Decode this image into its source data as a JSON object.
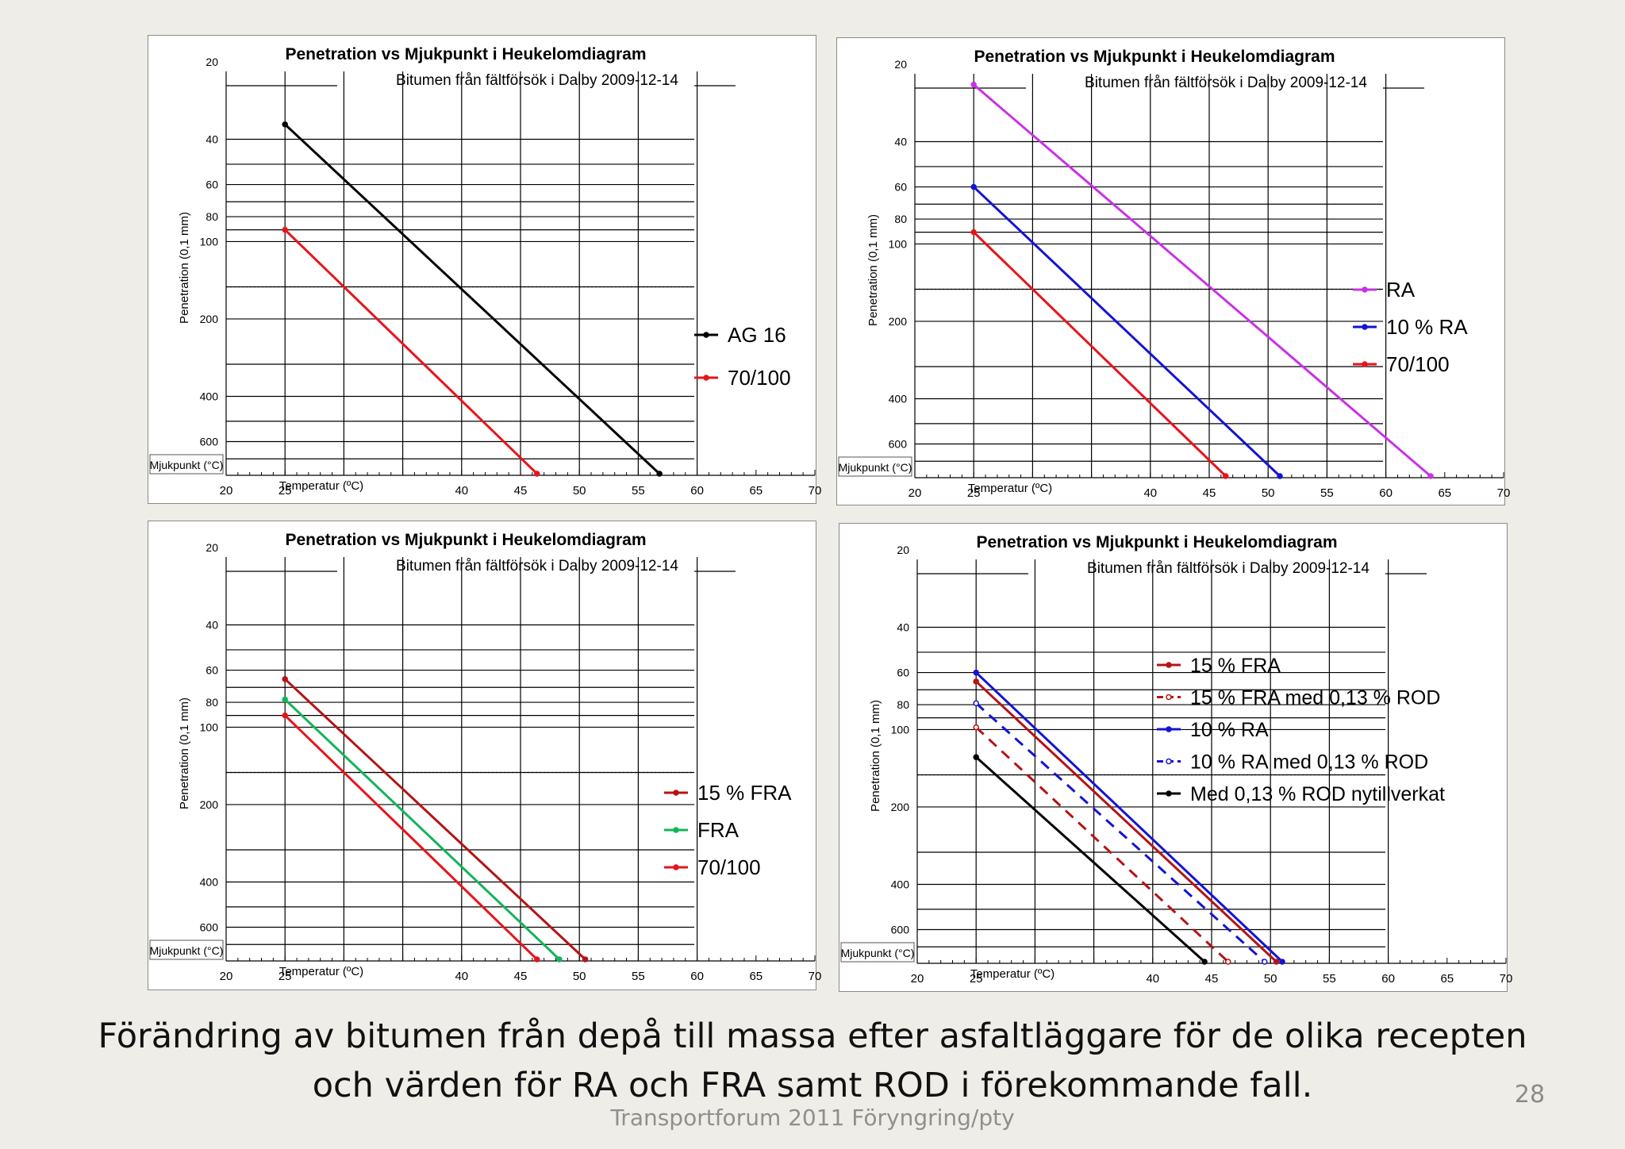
{
  "slide": {
    "caption_line1": "Förändring av bitumen från depå till massa efter asfaltläggare för de olika recepten",
    "caption_line2": "och värden för RA och FRA samt ROD i förekommande fall.",
    "footer": "Transportforum 2011 Föryngring/pty",
    "page_number": "28"
  },
  "chart_data": [
    {
      "type": "line",
      "title": "Penetration vs Mjukpunkt  i Heukelomdiagram",
      "subtitle": "Bitumen från fältförsök i Dalby 2009-12-14",
      "xlabel": "Temperatur (ºC)",
      "ylabel": "Penetration  (0,1 mm)",
      "x_axis_label": "Mjukpunkt (°C)",
      "xlim": [
        20,
        70
      ],
      "xticks": [
        "20",
        "25",
        "",
        "40",
        "45",
        "50",
        "55",
        "60",
        "65",
        "70"
      ],
      "y_scale": "log",
      "ylim": [
        20,
        800
      ],
      "yticks": [
        "20",
        "40",
        "60",
        "80",
        "100",
        "200",
        "400",
        "600"
      ],
      "legend_position": "right",
      "series": [
        {
          "name": "AG 16",
          "color": "#000000",
          "dashed": false,
          "x": [
            25,
            56.8
          ],
          "y": [
            35,
            800
          ]
        },
        {
          "name": "70/100",
          "color": "#e8141b",
          "dashed": false,
          "x": [
            25,
            46.4
          ],
          "y": [
            90,
            800
          ]
        }
      ]
    },
    {
      "type": "line",
      "title": "Penetration vs Mjukpunkt  i Heukelomdiagram",
      "subtitle": "Bitumen från fältförsök i Dalby 2009-12-14",
      "xlabel": "Temperatur (ºC)",
      "ylabel": "Penetration  (0,1 mm)",
      "x_axis_label": "Mjukpunkt (°C)",
      "xlim": [
        20,
        70
      ],
      "xticks": [
        "20",
        "25",
        "",
        "40",
        "45",
        "50",
        "55",
        "60",
        "65",
        "70"
      ],
      "y_scale": "log",
      "ylim": [
        20,
        800
      ],
      "yticks": [
        "20",
        "40",
        "60",
        "80",
        "100",
        "200",
        "400",
        "600"
      ],
      "legend_position": "right",
      "series": [
        {
          "name": "RA",
          "color": "#c832e6",
          "dashed": false,
          "x": [
            25,
            63.8
          ],
          "y": [
            24,
            800
          ]
        },
        {
          "name": "10 % RA",
          "color": "#1414d2",
          "dashed": false,
          "x": [
            25,
            51
          ],
          "y": [
            60,
            800
          ]
        },
        {
          "name": "70/100",
          "color": "#e8141b",
          "dashed": false,
          "x": [
            25,
            46.4
          ],
          "y": [
            90,
            800
          ]
        }
      ]
    },
    {
      "type": "line",
      "title": "Penetration vs Mjukpunkt  i Heukelomdiagram",
      "subtitle": "Bitumen från fältförsök i Dalby 2009-12-14",
      "xlabel": "Temperatur (ºC)",
      "ylabel": "Penetration  (0,1 mm)",
      "x_axis_label": "Mjukpunkt (°C)",
      "xlim": [
        20,
        70
      ],
      "xticks": [
        "20",
        "25",
        "",
        "40",
        "45",
        "50",
        "55",
        "60",
        "65",
        "70"
      ],
      "y_scale": "log",
      "ylim": [
        20,
        800
      ],
      "yticks": [
        "20",
        "40",
        "60",
        "80",
        "100",
        "200",
        "400",
        "600"
      ],
      "legend_position": "right",
      "series": [
        {
          "name": "15 % FRA",
          "color": "#b41414",
          "dashed": false,
          "x": [
            25,
            50.5
          ],
          "y": [
            65,
            800
          ]
        },
        {
          "name": "FRA",
          "color": "#14b45a",
          "dashed": false,
          "x": [
            25,
            48.3
          ],
          "y": [
            78,
            800
          ]
        },
        {
          "name": "70/100",
          "color": "#e8141b",
          "dashed": false,
          "x": [
            25,
            46.4
          ],
          "y": [
            90,
            800
          ]
        }
      ]
    },
    {
      "type": "line",
      "title": "Penetration vs Mjukpunkt  i Heukelomdiagram",
      "subtitle": "Bitumen från fältförsök i Dalby 2009-12-14",
      "xlabel": "Temperatur (ºC)",
      "ylabel": "Penetration  (0,1 mm)",
      "x_axis_label": "Mjukpunkt (°C)",
      "xlim": [
        20,
        70
      ],
      "xticks": [
        "20",
        "25",
        "",
        "40",
        "45",
        "50",
        "55",
        "60",
        "65",
        "70"
      ],
      "y_scale": "log",
      "ylim": [
        20,
        800
      ],
      "yticks": [
        "20",
        "40",
        "60",
        "80",
        "100",
        "200",
        "400",
        "600"
      ],
      "legend_position": "right",
      "series": [
        {
          "name": "15 % FRA",
          "color": "#b41414",
          "dashed": false,
          "x": [
            25,
            50.5
          ],
          "y": [
            65,
            800
          ]
        },
        {
          "name": "15 % FRA med 0,13 % ROD",
          "color": "#b41414",
          "dashed": true,
          "x": [
            25,
            46.4
          ],
          "y": [
            98,
            800
          ]
        },
        {
          "name": "10 % RA",
          "color": "#1414d2",
          "dashed": false,
          "x": [
            25,
            51
          ],
          "y": [
            60,
            800
          ]
        },
        {
          "name": "10 % RA med 0,13 % ROD",
          "color": "#1414d2",
          "dashed": true,
          "x": [
            25,
            49.5
          ],
          "y": [
            79,
            800
          ]
        },
        {
          "name": "Med 0,13 % ROD nytillverkat",
          "color": "#000000",
          "dashed": false,
          "x": [
            25,
            44.4
          ],
          "y": [
            128,
            800
          ]
        }
      ]
    }
  ]
}
